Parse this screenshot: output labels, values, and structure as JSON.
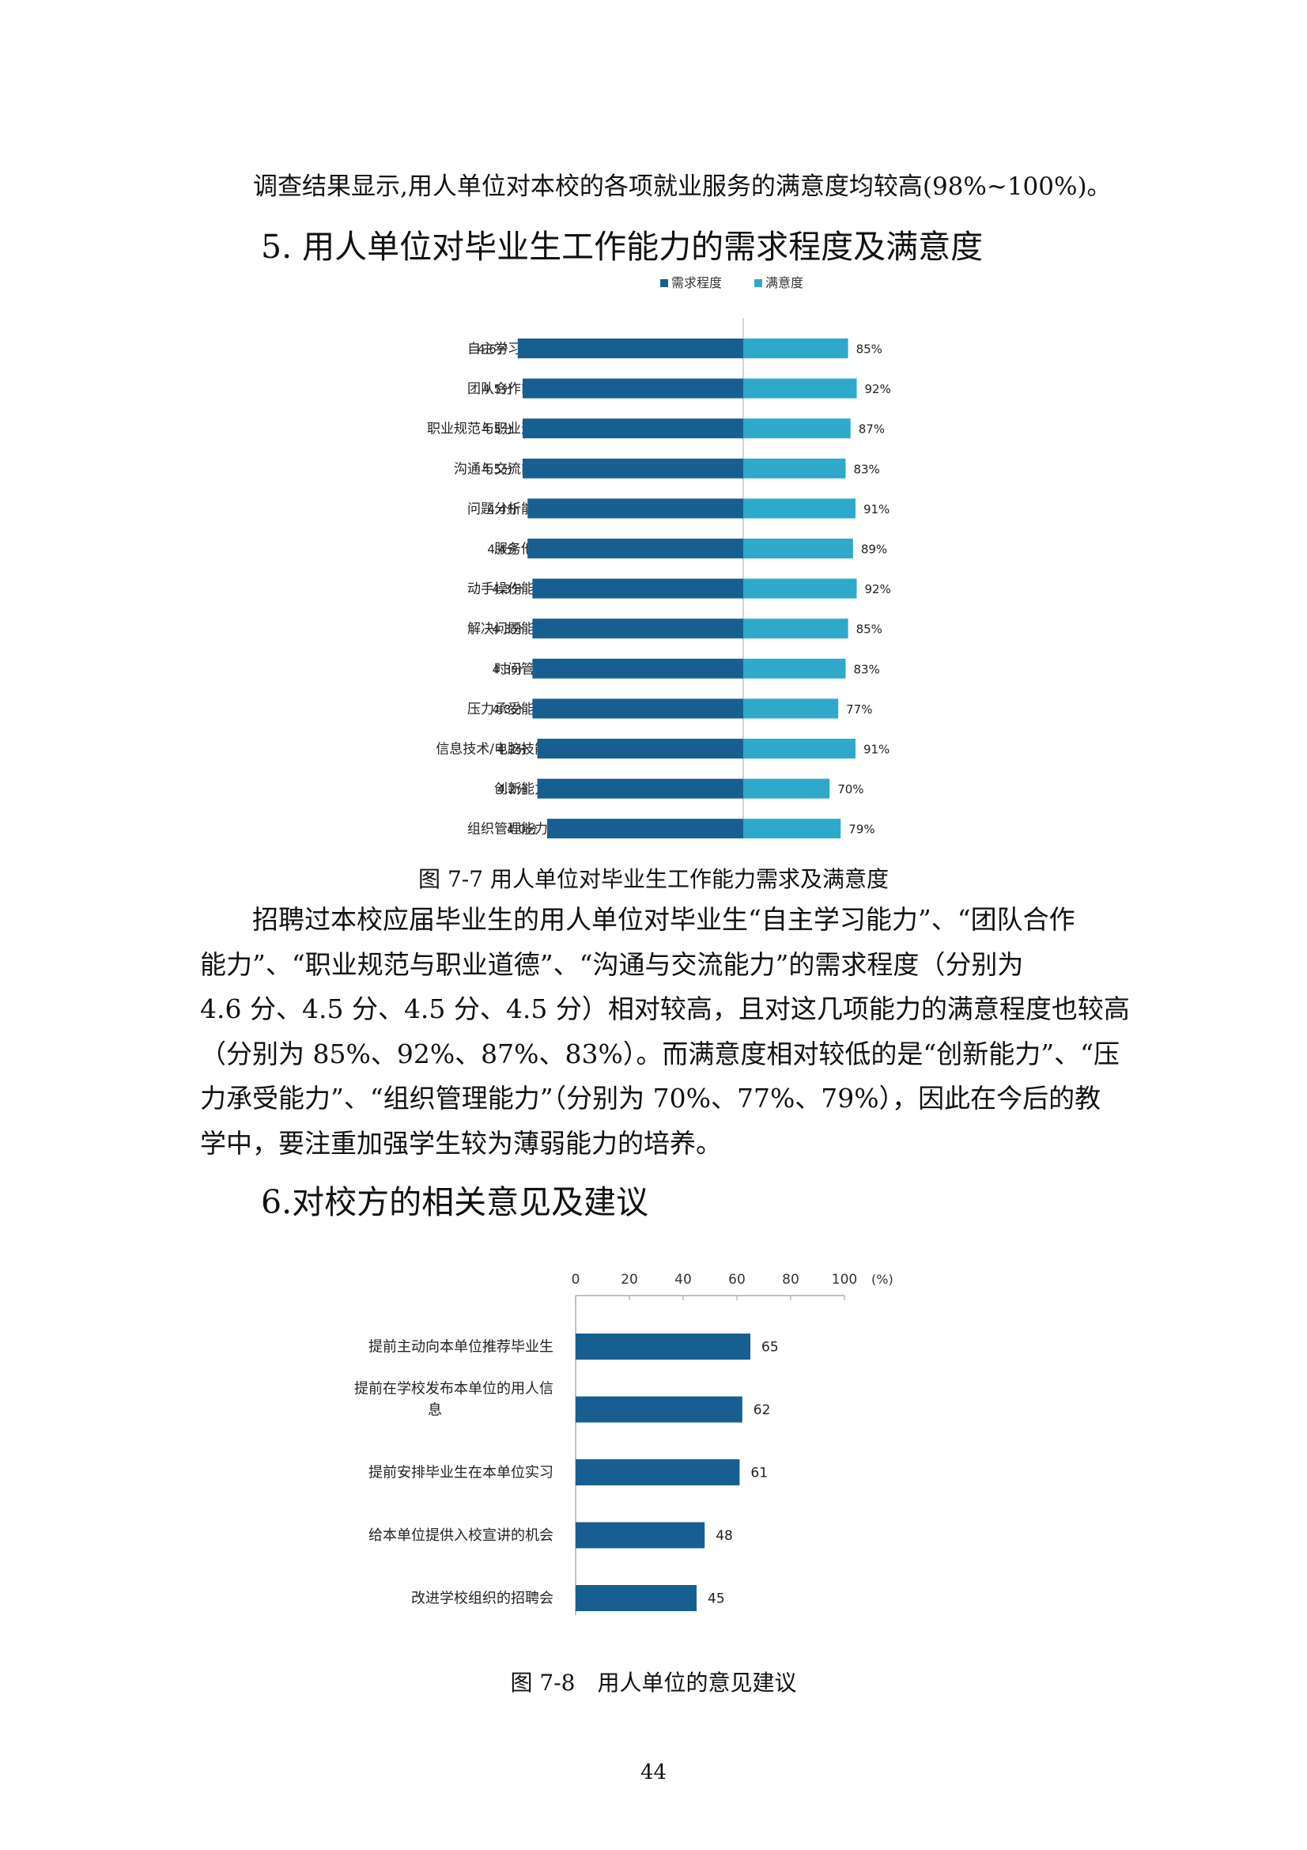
{
  "intro_line": "调查结果显示,用人单位对本校的各项就业服务的满意度均较高(98%~100%)。",
  "section5": {
    "heading": "5. 用人单位对毕业生工作能力的需求程度及满意度"
  },
  "section6": {
    "heading": "6.对校方的相关意见及建议"
  },
  "figure7_7": {
    "caption": "图 7-7 用人单位对毕业生工作能力需求及满意度"
  },
  "figure7_8": {
    "caption": "图 7-8　用人单位的意见建议"
  },
  "paragraph_lines": [
    "招聘过本校应届毕业生的用人单位对毕业生“自主学习能力”、“团队合作",
    "能力”、“职业规范与职业道德”、“沟通与交流能力”的需求程度（分别为",
    "4.6 分、4.5 分、4.5 分、4.5 分）相对较高，且对这几项能力的满意程度也较高",
    "（分别为 85%、92%、87%、83%）。而满意度相对较低的是“创新能力”、“压",
    "力承受能力”、“组织管理能力”（分别为 70%、77%、79%），因此在今后的教",
    "学中，要注重加强学生较为薄弱能力的培养。"
  ],
  "page_number": "44",
  "chart_data": [
    {
      "type": "bar",
      "orientation": "horizontal-diverging",
      "legend": {
        "position": "top-center"
      },
      "colors": {
        "需求程度": "#175f91",
        "满意度": "#2ea9cb"
      },
      "categories": [
        "自主学习能力",
        "团队合作能力",
        "职业规范与职业道德",
        "沟通与交流能力",
        "问题分析能力",
        "服务他人",
        "动手操作能力",
        "解决问题能力",
        "时间管理",
        "压力承受能力",
        "信息技术/电脑技能",
        "创新能力",
        "组织管理能力"
      ],
      "series": [
        {
          "name": "需求程度",
          "values": [
            4.6,
            4.5,
            4.5,
            4.5,
            4.4,
            4.4,
            4.3,
            4.3,
            4.3,
            4.3,
            4.2,
            4.2,
            4.0
          ],
          "labels": [
            "4.6分",
            "4.5分",
            "4.5分",
            "4.5分",
            "4.4分",
            "4.4分",
            "4.3分",
            "4.3分",
            "4.3分",
            "4.3分",
            "4.2分",
            "4.2分",
            "4.0分"
          ]
        },
        {
          "name": "满意度",
          "values": [
            85,
            92,
            87,
            83,
            91,
            89,
            92,
            85,
            83,
            77,
            91,
            70,
            79
          ],
          "labels": [
            "85%",
            "92%",
            "87%",
            "83%",
            "91%",
            "89%",
            "92%",
            "85%",
            "83%",
            "77%",
            "91%",
            "70%",
            "79%"
          ]
        }
      ]
    },
    {
      "type": "bar",
      "orientation": "horizontal",
      "color": "#175f91",
      "categories": [
        [
          "提前主动向本单位推荐毕业生"
        ],
        [
          "提前在学校发布本单位的用人信",
          "息"
        ],
        [
          "提前安排毕业生在本单位实习"
        ],
        [
          "给本单位提供入校宣讲的机会"
        ],
        [
          "改进学校组织的招聘会"
        ]
      ],
      "values": [
        65,
        62,
        61,
        48,
        45
      ],
      "value_labels": [
        "65",
        "62",
        "61",
        "48",
        "45"
      ],
      "xlim": [
        0,
        100
      ],
      "xticks": [
        "0",
        "20",
        "40",
        "60",
        "80",
        "100"
      ],
      "unit_label": "(%)",
      "xaxis_position": "top"
    }
  ]
}
